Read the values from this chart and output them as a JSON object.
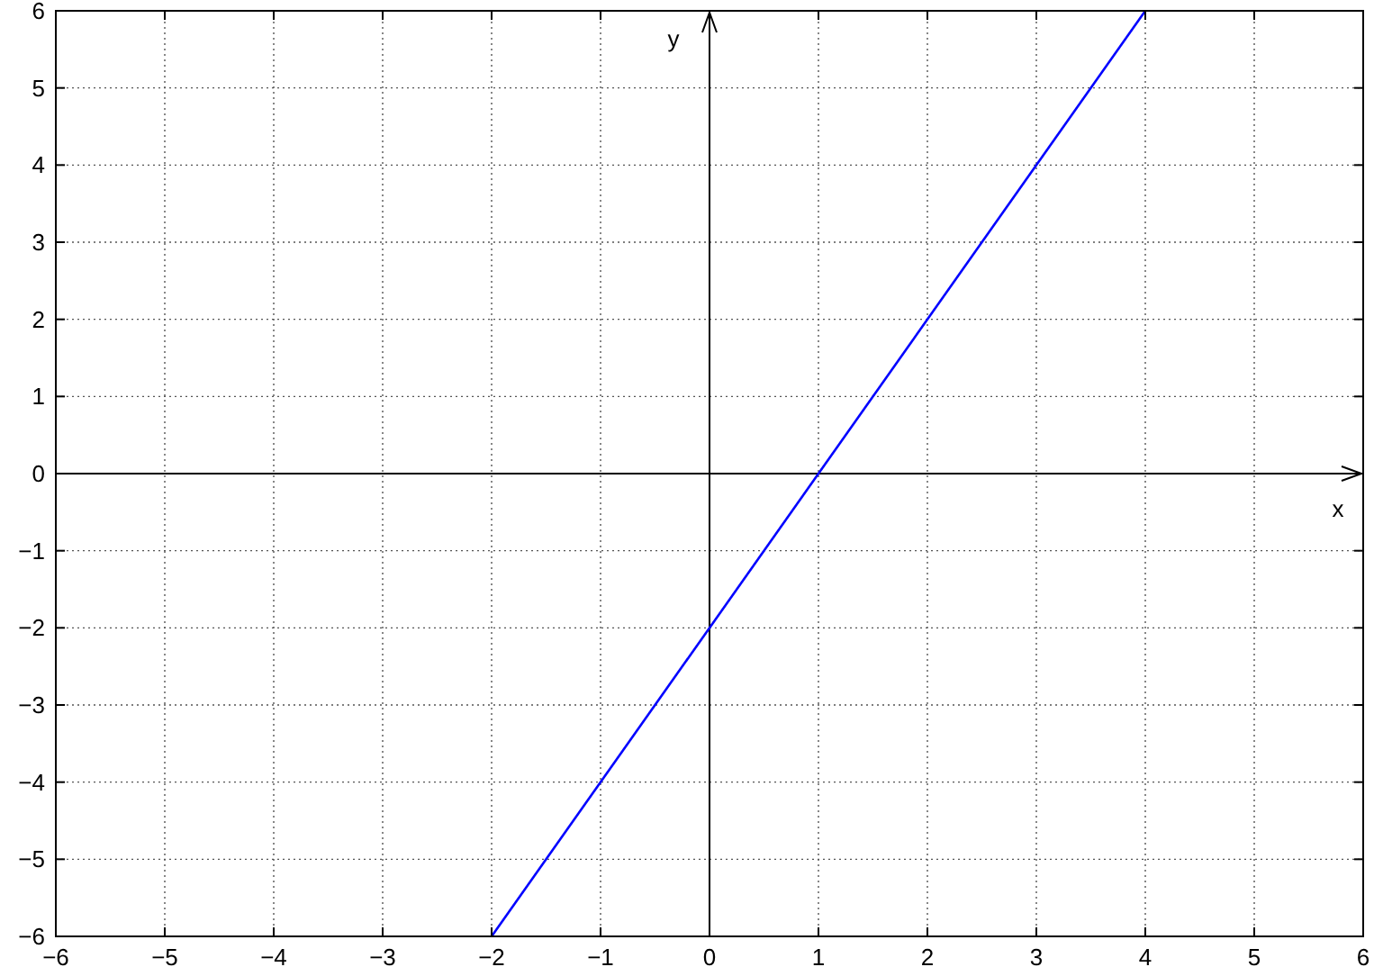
{
  "chart_data": {
    "type": "line",
    "xlabel": "x",
    "ylabel": "y",
    "series": [
      {
        "x": [
          -2,
          4
        ],
        "values": [
          -6,
          6
        ],
        "color": "#0000ff"
      }
    ],
    "xlim": [
      -6,
      6
    ],
    "ylim": [
      -6,
      6
    ],
    "xticks": [
      {
        "value": -6,
        "label": "−6"
      },
      {
        "value": -5,
        "label": "−5"
      },
      {
        "value": -4,
        "label": "−4"
      },
      {
        "value": -3,
        "label": "−3"
      },
      {
        "value": -2,
        "label": "−2"
      },
      {
        "value": -1,
        "label": "−1"
      },
      0,
      1,
      2,
      3,
      4,
      5,
      6
    ],
    "yticks": [
      {
        "value": -6,
        "label": "−6"
      },
      {
        "value": -5,
        "label": "−5"
      },
      {
        "value": -4,
        "label": "−4"
      },
      {
        "value": -3,
        "label": "−3"
      },
      {
        "value": -2,
        "label": "−2"
      },
      {
        "value": -1,
        "label": "−1"
      },
      0,
      1,
      2,
      3,
      4,
      5,
      6
    ],
    "grid": true
  }
}
